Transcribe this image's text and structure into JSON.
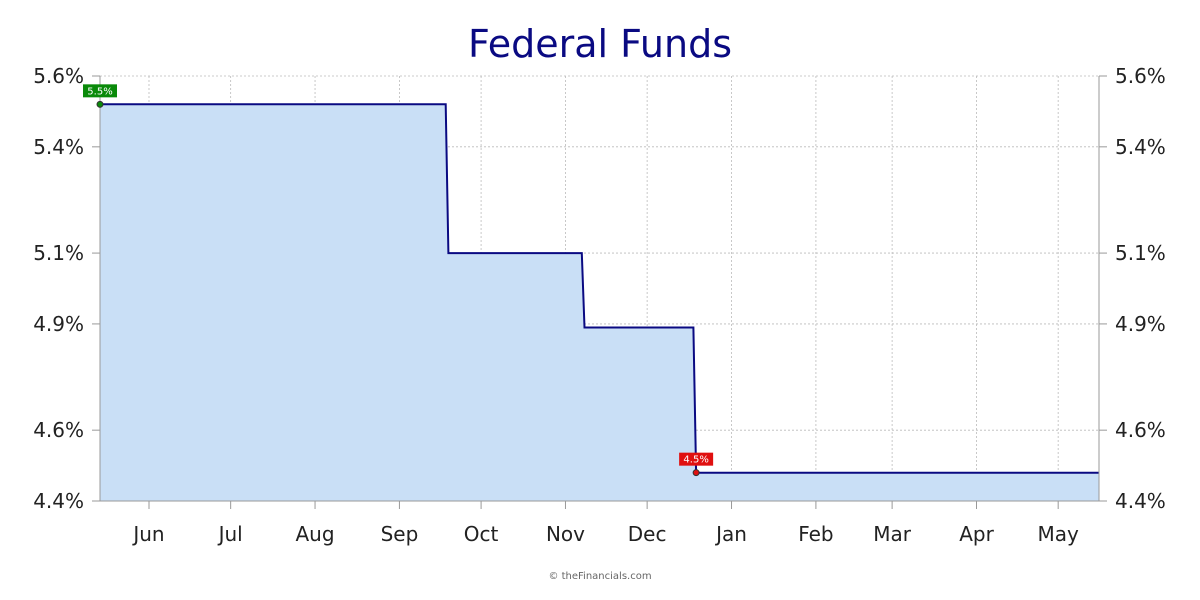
{
  "chart_data": {
    "type": "area",
    "title": "Federal Funds",
    "xlabel": "",
    "ylabel": "",
    "ylim": [
      4.4,
      5.6
    ],
    "x_range": [
      "2024-05-14",
      "2025-05-16"
    ],
    "x_ticks": [
      {
        "date": "2024-06-01",
        "label": "Jun"
      },
      {
        "date": "2024-07-01",
        "label": "Jul"
      },
      {
        "date": "2024-08-01",
        "label": "Aug"
      },
      {
        "date": "2024-09-01",
        "label": "Sep"
      },
      {
        "date": "2024-10-01",
        "label": "Oct"
      },
      {
        "date": "2024-11-01",
        "label": "Nov"
      },
      {
        "date": "2024-12-01",
        "label": "Dec"
      },
      {
        "date": "2025-01-01",
        "label": "Jan"
      },
      {
        "date": "2025-02-01",
        "label": "Feb"
      },
      {
        "date": "2025-03-01",
        "label": "Mar"
      },
      {
        "date": "2025-04-01",
        "label": "Apr"
      },
      {
        "date": "2025-05-01",
        "label": "May"
      }
    ],
    "y_ticks": [
      {
        "value": 4.4,
        "label": "4.4%"
      },
      {
        "value": 4.6,
        "label": "4.6%"
      },
      {
        "value": 4.9,
        "label": "4.9%"
      },
      {
        "value": 5.1,
        "label": "5.1%"
      },
      {
        "value": 5.4,
        "label": "5.4%"
      },
      {
        "value": 5.6,
        "label": "5.6%"
      }
    ],
    "series": [
      {
        "step": true,
        "points": [
          {
            "x": "2024-05-14",
            "y": 5.52
          },
          {
            "x": "2024-09-18",
            "y": 5.52
          },
          {
            "x": "2024-09-19",
            "y": 5.1
          },
          {
            "x": "2024-11-07",
            "y": 5.1
          },
          {
            "x": "2024-11-08",
            "y": 4.89
          },
          {
            "x": "2024-12-18",
            "y": 4.89
          },
          {
            "x": "2024-12-19",
            "y": 4.48
          },
          {
            "x": "2025-05-16",
            "y": 4.48
          }
        ]
      }
    ],
    "markers": [
      {
        "x": "2024-05-14",
        "y": 5.52,
        "label": "5.5%",
        "color": "#0a8a0a"
      },
      {
        "x": "2024-12-19",
        "y": 4.48,
        "label": "4.5%",
        "color": "#e01010"
      }
    ],
    "grid": true,
    "colors": {
      "line": "#0a0a82",
      "fill": "#c9dff6",
      "title": "#0a0a82",
      "grid": "#bbbbbb",
      "axis": "#999999"
    }
  },
  "footer": {
    "credit": "© theFinancials.com"
  }
}
